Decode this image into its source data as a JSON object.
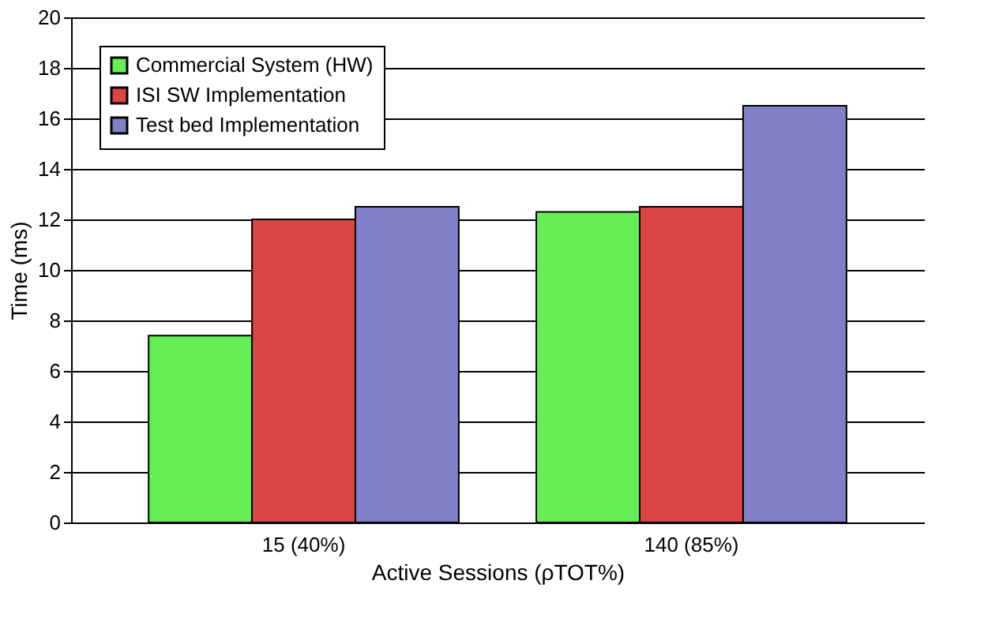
{
  "chart_data": {
    "type": "bar",
    "xlabel": "Active Sessions (ρTOT%)",
    "ylabel": "Time (ms)",
    "categories": [
      "15 (40%)",
      "140 (85%)"
    ],
    "series": [
      {
        "name": "Commercial System (HW)",
        "color": "#66ee55",
        "values": [
          7.4,
          12.3
        ]
      },
      {
        "name": "ISI SW Implementation",
        "color": "#dd4444",
        "values": [
          12.0,
          12.5
        ]
      },
      {
        "name": "Test bed Implementation",
        "color": "#8080c8",
        "values": [
          12.5,
          16.5
        ]
      }
    ],
    "ylim": [
      0,
      20
    ],
    "yticks": [
      0,
      2,
      4,
      6,
      8,
      10,
      12,
      14,
      16,
      18,
      20
    ],
    "grid": "y",
    "legend": "top left"
  }
}
